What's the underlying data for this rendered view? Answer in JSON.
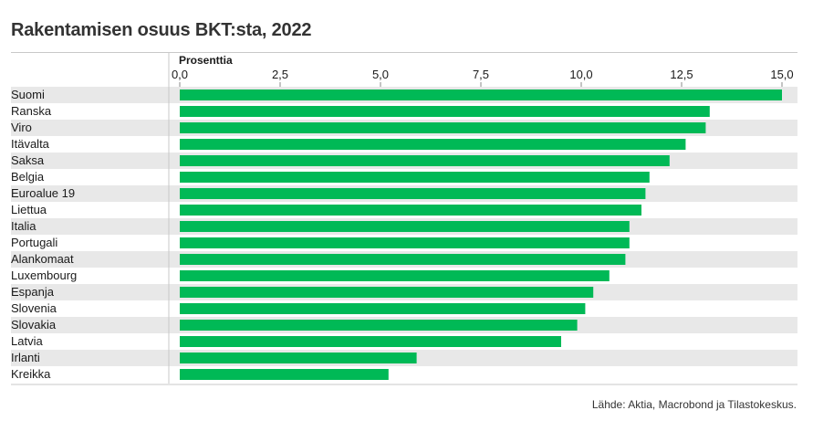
{
  "chart_data": {
    "type": "bar",
    "orientation": "horizontal",
    "title": "Rakentamisen osuus BKT:sta, 2022",
    "xlabel": "Prosenttia",
    "ylabel": "",
    "xlim": [
      0,
      15.5
    ],
    "x_ticks": [
      "0,0",
      "2,5",
      "5,0",
      "7,5",
      "10,0",
      "12,5",
      "15,0"
    ],
    "x_tick_values": [
      0,
      2.5,
      5,
      7.5,
      10,
      12.5,
      15
    ],
    "categories": [
      "Suomi",
      "Ranska",
      "Viro",
      "Itävalta",
      "Saksa",
      "Belgia",
      "Euroalue 19",
      "Liettua",
      "Italia",
      "Portugali",
      "Alankomaat",
      "Luxembourg",
      "Espanja",
      "Slovenia",
      "Slovakia",
      "Latvia",
      "Irlanti",
      "Kreikka"
    ],
    "values": [
      15.0,
      13.2,
      13.1,
      12.6,
      12.2,
      11.7,
      11.6,
      11.5,
      11.2,
      11.2,
      11.1,
      10.7,
      10.3,
      10.1,
      9.9,
      9.5,
      5.9,
      5.2
    ],
    "source": "Lähde: Aktia, Macrobond ja Tilastokeskus.",
    "grid": false,
    "legend": "none",
    "colors": {
      "bar": "#00b956",
      "row_band": "#e8e8e8",
      "text": "#1a1a1a"
    }
  }
}
